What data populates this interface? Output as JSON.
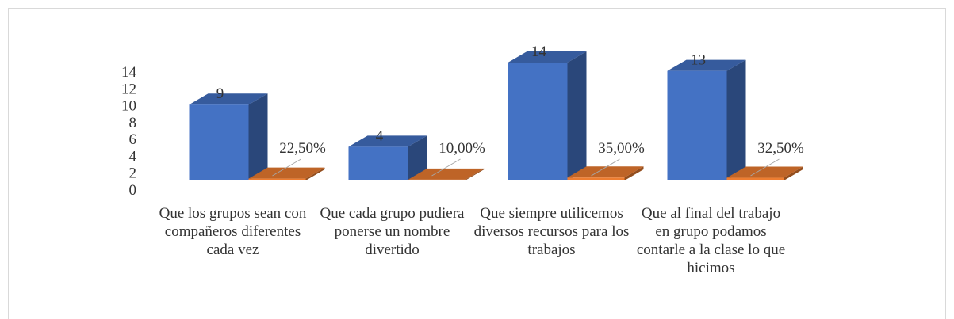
{
  "chart_data": {
    "type": "bar3d",
    "categories": [
      "Que los grupos sean con compañeros diferentes cada vez",
      "Que cada grupo pudiera ponerse un nombre divertido",
      "Que siempre utilicemos diversos recursos para los trabajos",
      "Que al final del trabajo en grupo podamos contarle a la clase lo que hicimos"
    ],
    "series": [
      {
        "color": "#4472c4",
        "values": [
          9,
          4,
          14,
          13
        ]
      },
      {
        "color": "#ed7d31",
        "values": [
          0.225,
          0.1,
          0.35,
          0.325
        ],
        "value_labels": [
          "22,50%",
          "10,00%",
          "35,00%",
          "32,50%"
        ]
      }
    ],
    "ylim": [
      0,
      14
    ],
    "yticks": [
      0,
      2,
      4,
      6,
      8,
      10,
      12,
      14
    ]
  }
}
